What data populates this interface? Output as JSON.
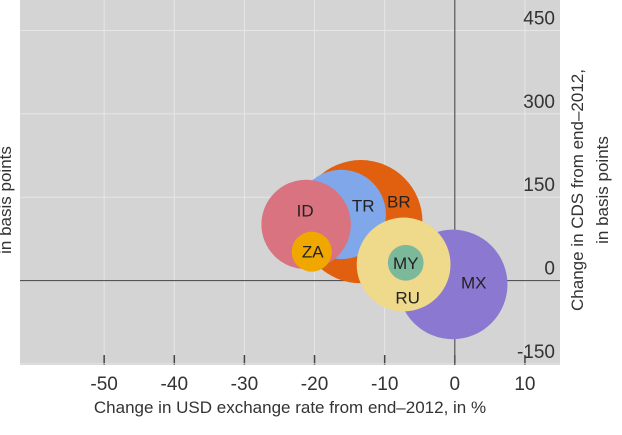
{
  "chart_data": {
    "type": "bubble",
    "x_label": "Change in USD exchange rate from end–2012, in %",
    "y_label_lines": [
      "Change in CDS from end–2012,",
      "in basis points"
    ],
    "left_label": "in basis points",
    "xlim": [
      -62,
      15
    ],
    "ylim": [
      -152,
      505
    ],
    "xticks": [
      -50,
      -40,
      -30,
      -20,
      -10,
      0,
      10
    ],
    "yticks": [
      -150,
      0,
      150,
      300,
      450
    ],
    "grid": true,
    "series": [
      {
        "name": "BR",
        "color": "#e0600f",
        "x": -13.4,
        "values": [
          106
        ],
        "size": [
          38
        ]
      },
      {
        "name": "TR",
        "color": "#7fa7e9",
        "x": -16.2,
        "values": [
          119
        ],
        "size": [
          20
        ]
      },
      {
        "name": "ID",
        "color": "#d8737f",
        "x": -21.2,
        "values": [
          101
        ],
        "size": [
          20
        ]
      },
      {
        "name": "ZA",
        "color": "#f0a800",
        "x": -20.4,
        "values": [
          52
        ],
        "size": [
          4
        ]
      },
      {
        "name": "MX",
        "color": "#8b79d1",
        "x": -0.3,
        "values": [
          -7
        ],
        "size": [
          30
        ]
      },
      {
        "name": "RU",
        "color": "#efd98b",
        "x": -7.3,
        "values": [
          29
        ],
        "size": [
          22
        ]
      },
      {
        "name": "MY",
        "color": "#7cb99a",
        "x": -7,
        "values": [
          32
        ],
        "size": [
          3.2
        ]
      }
    ]
  }
}
